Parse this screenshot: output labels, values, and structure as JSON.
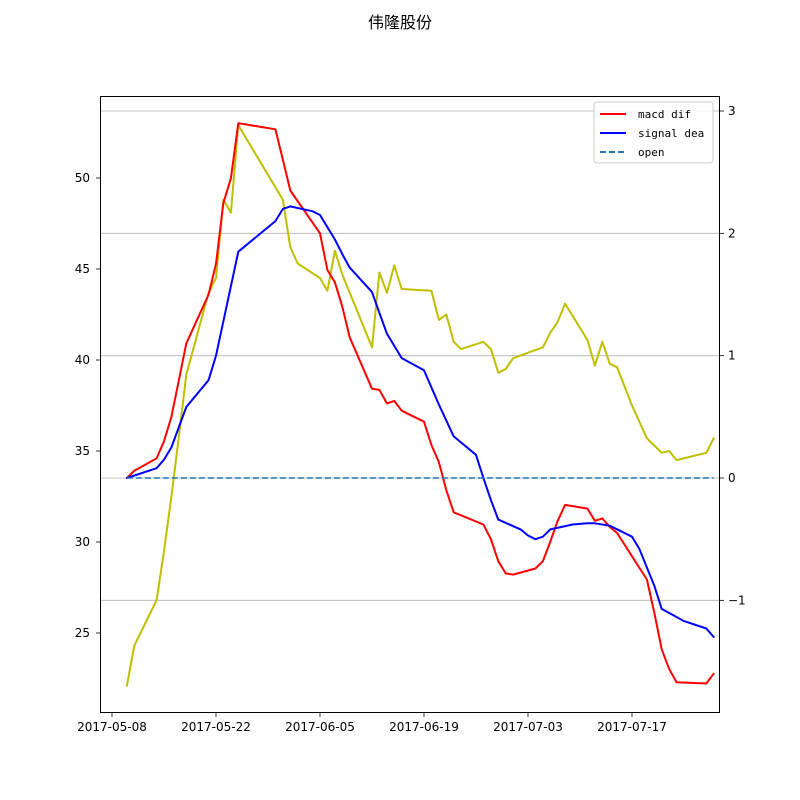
{
  "chart_data": {
    "type": "line",
    "title": "伟隆股份",
    "xlabel": "",
    "ylabel": "",
    "x_tick_labels": [
      "2017-05-08",
      "2017-05-22",
      "2017-06-05",
      "2017-06-19",
      "2017-07-03",
      "2017-07-17"
    ],
    "left_axis": {
      "ylim": [
        20.5,
        54.3
      ],
      "ticks": [
        25,
        30,
        35,
        40,
        45,
        50
      ]
    },
    "right_axis": {
      "ylim": [
        -1.9,
        3.1
      ],
      "ticks": [
        -1,
        0,
        1,
        2,
        3
      ],
      "grid": true
    },
    "legend": {
      "placement": "top-right",
      "entries": [
        {
          "label": "macd dif",
          "color": "#ff0000",
          "style": "solid"
        },
        {
          "label": "signal dea",
          "color": "#0000ff",
          "style": "solid"
        },
        {
          "label": "open",
          "color": "#1f77b4",
          "style": "dashed"
        }
      ]
    },
    "series": [
      {
        "name": "",
        "axis": "left",
        "color": "#bfbf00",
        "points": [
          [
            "2017-05-10",
            22.1
          ],
          [
            "2017-05-11",
            24.3
          ],
          [
            "2017-05-14",
            26.8
          ],
          [
            "2017-05-15",
            29.5
          ],
          [
            "2017-05-16",
            32.5
          ],
          [
            "2017-05-17",
            35.8
          ],
          [
            "2017-05-18",
            39.2
          ],
          [
            "2017-05-21",
            43.7
          ],
          [
            "2017-05-22",
            44.5
          ],
          [
            "2017-05-23",
            48.8
          ],
          [
            "2017-05-24",
            48.1
          ],
          [
            "2017-05-25",
            52.9
          ],
          [
            "2017-05-31",
            48.8
          ],
          [
            "2017-06-01",
            46.2
          ],
          [
            "2017-06-02",
            45.3
          ],
          [
            "2017-06-05",
            44.5
          ],
          [
            "2017-06-06",
            43.8
          ],
          [
            "2017-06-07",
            46.0
          ],
          [
            "2017-06-08",
            44.7
          ],
          [
            "2017-06-12",
            40.7
          ],
          [
            "2017-06-13",
            44.8
          ],
          [
            "2017-06-14",
            43.7
          ],
          [
            "2017-06-15",
            45.2
          ],
          [
            "2017-06-16",
            43.9
          ],
          [
            "2017-06-20",
            43.8
          ],
          [
            "2017-06-21",
            42.2
          ],
          [
            "2017-06-22",
            42.5
          ],
          [
            "2017-06-23",
            41.0
          ],
          [
            "2017-06-24",
            40.6
          ],
          [
            "2017-06-27",
            41.0
          ],
          [
            "2017-06-28",
            40.6
          ],
          [
            "2017-06-29",
            39.3
          ],
          [
            "2017-06-30",
            39.5
          ],
          [
            "2017-07-01",
            40.1
          ],
          [
            "2017-07-05",
            40.7
          ],
          [
            "2017-07-06",
            41.5
          ],
          [
            "2017-07-07",
            42.1
          ],
          [
            "2017-07-08",
            43.1
          ],
          [
            "2017-07-11",
            41.1
          ],
          [
            "2017-07-12",
            39.7
          ],
          [
            "2017-07-13",
            41.0
          ],
          [
            "2017-07-14",
            39.8
          ],
          [
            "2017-07-15",
            39.6
          ],
          [
            "2017-07-17",
            37.5
          ],
          [
            "2017-07-19",
            35.7
          ],
          [
            "2017-07-20",
            35.3
          ],
          [
            "2017-07-21",
            34.9
          ],
          [
            "2017-07-22",
            35.0
          ],
          [
            "2017-07-23",
            34.5
          ],
          [
            "2017-07-27",
            34.9
          ],
          [
            "2017-07-28",
            35.7
          ]
        ]
      },
      {
        "name": "macd dif",
        "axis": "right",
        "color": "#ff0000",
        "points": [
          [
            "2017-05-10",
            0.0
          ],
          [
            "2017-05-11",
            0.06
          ],
          [
            "2017-05-14",
            0.16
          ],
          [
            "2017-05-15",
            0.3
          ],
          [
            "2017-05-16",
            0.5
          ],
          [
            "2017-05-17",
            0.8
          ],
          [
            "2017-05-18",
            1.1
          ],
          [
            "2017-05-21",
            1.5
          ],
          [
            "2017-05-22",
            1.75
          ],
          [
            "2017-05-23",
            2.25
          ],
          [
            "2017-05-24",
            2.45
          ],
          [
            "2017-05-25",
            2.9
          ],
          [
            "2017-05-30",
            2.85
          ],
          [
            "2017-05-31",
            2.6
          ],
          [
            "2017-06-01",
            2.35
          ],
          [
            "2017-06-05",
            2.0
          ],
          [
            "2017-06-06",
            1.7
          ],
          [
            "2017-06-07",
            1.6
          ],
          [
            "2017-06-08",
            1.4
          ],
          [
            "2017-06-09",
            1.15
          ],
          [
            "2017-06-12",
            0.73
          ],
          [
            "2017-06-13",
            0.72
          ],
          [
            "2017-06-14",
            0.61
          ],
          [
            "2017-06-15",
            0.63
          ],
          [
            "2017-06-16",
            0.55
          ],
          [
            "2017-06-19",
            0.46
          ],
          [
            "2017-06-20",
            0.27
          ],
          [
            "2017-06-21",
            0.13
          ],
          [
            "2017-06-22",
            -0.1
          ],
          [
            "2017-06-23",
            -0.28
          ],
          [
            "2017-06-27",
            -0.38
          ],
          [
            "2017-06-28",
            -0.5
          ],
          [
            "2017-06-29",
            -0.68
          ],
          [
            "2017-06-30",
            -0.78
          ],
          [
            "2017-07-01",
            -0.79
          ],
          [
            "2017-07-04",
            -0.74
          ],
          [
            "2017-07-05",
            -0.68
          ],
          [
            "2017-07-06",
            -0.52
          ],
          [
            "2017-07-07",
            -0.35
          ],
          [
            "2017-07-08",
            -0.22
          ],
          [
            "2017-07-11",
            -0.25
          ],
          [
            "2017-07-12",
            -0.35
          ],
          [
            "2017-07-13",
            -0.33
          ],
          [
            "2017-07-14",
            -0.4
          ],
          [
            "2017-07-15",
            -0.45
          ],
          [
            "2017-07-19",
            -0.83
          ],
          [
            "2017-07-20",
            -1.1
          ],
          [
            "2017-07-21",
            -1.4
          ],
          [
            "2017-07-22",
            -1.56
          ],
          [
            "2017-07-23",
            -1.67
          ],
          [
            "2017-07-27",
            -1.68
          ],
          [
            "2017-07-28",
            -1.6
          ]
        ]
      },
      {
        "name": "signal dea",
        "axis": "right",
        "color": "#0000ff",
        "points": [
          [
            "2017-05-10",
            0.0
          ],
          [
            "2017-05-14",
            0.08
          ],
          [
            "2017-05-15",
            0.15
          ],
          [
            "2017-05-16",
            0.25
          ],
          [
            "2017-05-18",
            0.58
          ],
          [
            "2017-05-21",
            0.8
          ],
          [
            "2017-05-22",
            1.0
          ],
          [
            "2017-05-25",
            1.85
          ],
          [
            "2017-05-30",
            2.1
          ],
          [
            "2017-05-31",
            2.2
          ],
          [
            "2017-06-01",
            2.22
          ],
          [
            "2017-06-04",
            2.18
          ],
          [
            "2017-06-05",
            2.15
          ],
          [
            "2017-06-06",
            2.05
          ],
          [
            "2017-06-07",
            1.95
          ],
          [
            "2017-06-08",
            1.83
          ],
          [
            "2017-06-09",
            1.72
          ],
          [
            "2017-06-12",
            1.52
          ],
          [
            "2017-06-13",
            1.35
          ],
          [
            "2017-06-14",
            1.18
          ],
          [
            "2017-06-16",
            0.98
          ],
          [
            "2017-06-19",
            0.88
          ],
          [
            "2017-06-21",
            0.6
          ],
          [
            "2017-06-23",
            0.34
          ],
          [
            "2017-06-26",
            0.19
          ],
          [
            "2017-06-27",
            0.0
          ],
          [
            "2017-06-28",
            -0.18
          ],
          [
            "2017-06-29",
            -0.34
          ],
          [
            "2017-07-02",
            -0.42
          ],
          [
            "2017-07-03",
            -0.47
          ],
          [
            "2017-07-04",
            -0.5
          ],
          [
            "2017-07-05",
            -0.48
          ],
          [
            "2017-07-06",
            -0.42
          ],
          [
            "2017-07-09",
            -0.38
          ],
          [
            "2017-07-11",
            -0.37
          ],
          [
            "2017-07-12",
            -0.37
          ],
          [
            "2017-07-14",
            -0.39
          ],
          [
            "2017-07-17",
            -0.48
          ],
          [
            "2017-07-18",
            -0.58
          ],
          [
            "2017-07-20",
            -0.88
          ],
          [
            "2017-07-21",
            -1.07
          ],
          [
            "2017-07-24",
            -1.17
          ],
          [
            "2017-07-27",
            -1.23
          ],
          [
            "2017-07-28",
            -1.3
          ]
        ]
      },
      {
        "name": "open",
        "axis": "right",
        "color": "#1f77b4",
        "style": "dashed",
        "points": [
          [
            "2017-05-10",
            0.0
          ],
          [
            "2017-07-28",
            0.0
          ]
        ]
      }
    ]
  }
}
